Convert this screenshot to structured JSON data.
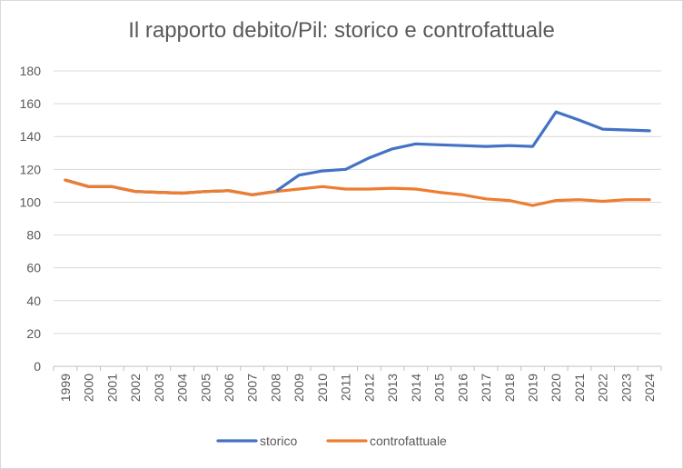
{
  "chart_data": {
    "type": "line",
    "title": "Il rapporto debito/Pil: storico e controfattuale",
    "xlabel": "",
    "ylabel": "",
    "ylim": [
      0,
      180
    ],
    "yticks": [
      0,
      20,
      40,
      60,
      80,
      100,
      120,
      140,
      160,
      180
    ],
    "grid": true,
    "legend_position": "bottom",
    "x": [
      "1999",
      "2000",
      "2001",
      "2002",
      "2003",
      "2004",
      "2005",
      "2006",
      "2007",
      "2008",
      "2009",
      "2010",
      "2011",
      "2012",
      "2013",
      "2014",
      "2015",
      "2016",
      "2017",
      "2018",
      "2019",
      "2020",
      "2021",
      "2022",
      "2023",
      "2024"
    ],
    "series": [
      {
        "name": "storico",
        "color": "#4472C4",
        "values": [
          113.5,
          109.5,
          109.5,
          106.5,
          106,
          105.5,
          106.5,
          107,
          104.5,
          106.5,
          116.5,
          119,
          120,
          127,
          132.5,
          135.5,
          135,
          134.5,
          134,
          134.5,
          134,
          155,
          150,
          144.5,
          144,
          143.5
        ]
      },
      {
        "name": "controfattuale",
        "color": "#ED7D31",
        "values": [
          113.5,
          109.5,
          109.5,
          106.5,
          106,
          105.5,
          106.5,
          107,
          104.5,
          106.5,
          108,
          109.5,
          108,
          108,
          108.5,
          108,
          106,
          104.5,
          102,
          101,
          98,
          101,
          101.5,
          100.5,
          101.5,
          101.5
        ]
      }
    ]
  }
}
